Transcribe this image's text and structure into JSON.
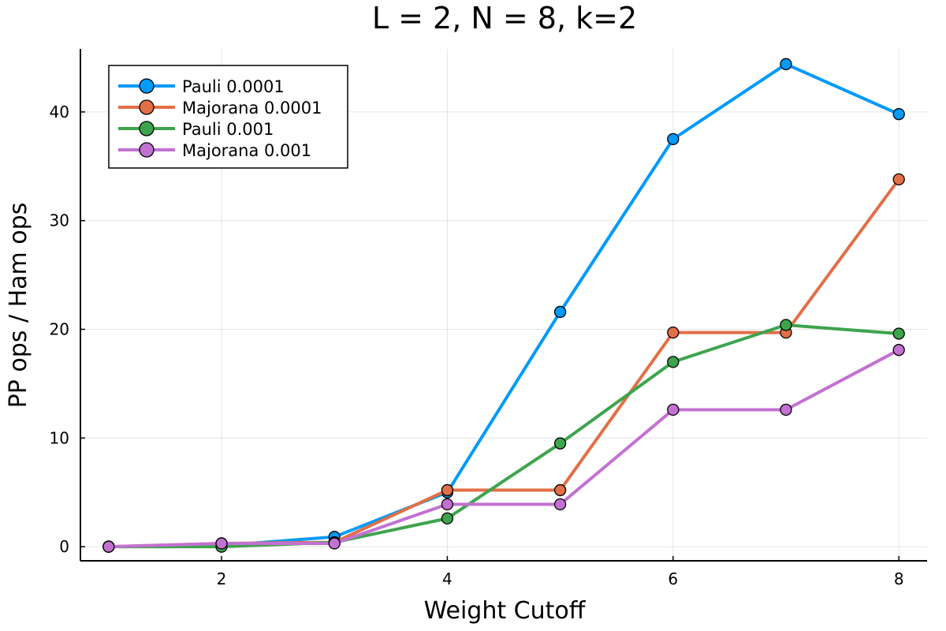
{
  "chart_data": {
    "type": "line",
    "title": "L = 2, N = 8, k=2",
    "xlabel": "Weight Cutoff",
    "ylabel": "PP ops / Ham ops",
    "xlim": [
      0.75,
      8.25
    ],
    "ylim": [
      -1.3,
      45.8
    ],
    "xticks": [
      2,
      4,
      6,
      8
    ],
    "yticks": [
      0,
      10,
      20,
      30,
      40
    ],
    "grid": true,
    "legend_position": "top-left",
    "x": [
      1,
      2,
      3,
      4,
      5,
      6,
      7,
      8
    ],
    "series": [
      {
        "name": "Pauli 0.0001",
        "color": "#009af9",
        "values": [
          0,
          0.1,
          0.9,
          5.0,
          21.6,
          37.5,
          44.4,
          39.8
        ]
      },
      {
        "name": "Majorana 0.0001",
        "color": "#e26f46",
        "values": [
          0,
          0.3,
          0.4,
          5.2,
          5.2,
          19.7,
          19.7,
          33.8
        ]
      },
      {
        "name": "Pauli 0.001",
        "color": "#3da44d",
        "values": [
          0,
          0,
          0.4,
          2.6,
          9.5,
          17.0,
          20.4,
          19.6
        ]
      },
      {
        "name": "Majorana 0.001",
        "color": "#c271d2",
        "values": [
          0,
          0.3,
          0.3,
          3.9,
          3.9,
          12.6,
          12.6,
          18.1
        ]
      }
    ]
  }
}
